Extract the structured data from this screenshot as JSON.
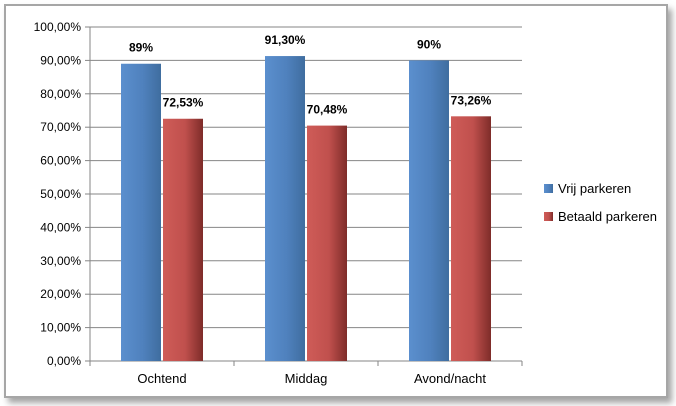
{
  "chart_data": {
    "type": "bar",
    "categories": [
      "Ochtend",
      "Middag",
      "Avond/nacht"
    ],
    "series": [
      {
        "name": "Vrij parkeren",
        "values": [
          89,
          91.3,
          90
        ],
        "labels": [
          "89%",
          "91,30%",
          "90%"
        ],
        "color": "#4f81bd"
      },
      {
        "name": "Betaald parkeren",
        "values": [
          72.53,
          70.48,
          73.26
        ],
        "labels": [
          "72,53%",
          "70,48%",
          "73,26%"
        ],
        "color": "#c0504d"
      }
    ],
    "ylim": [
      0,
      100
    ],
    "yticks": [
      0,
      10,
      20,
      30,
      40,
      50,
      60,
      70,
      80,
      90,
      100
    ],
    "ytick_labels": [
      "0,00%",
      "10,00%",
      "20,00%",
      "30,00%",
      "40,00%",
      "50,00%",
      "60,00%",
      "70,00%",
      "80,00%",
      "90,00%",
      "100,00%"
    ],
    "grid": true,
    "legend": "right"
  }
}
